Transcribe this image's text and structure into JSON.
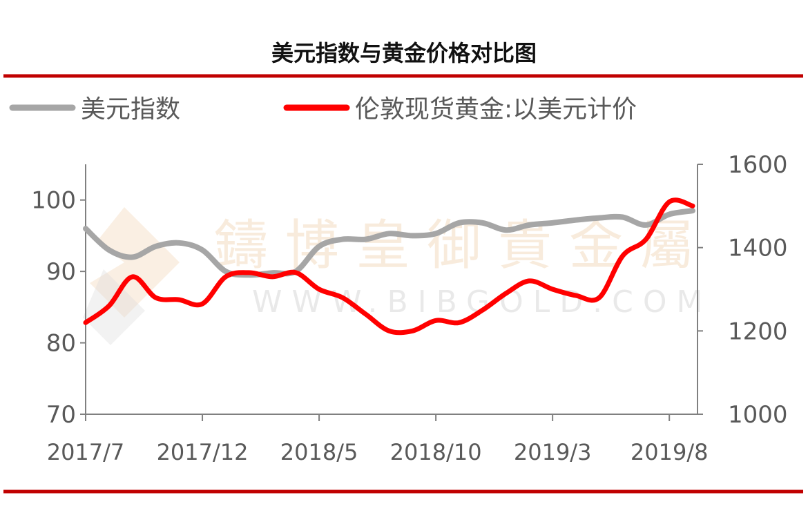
{
  "chart_data": {
    "type": "line",
    "title": "美元指数与黄金价格对比图",
    "x": [
      "2017/7",
      "2017/8",
      "2017/9",
      "2017/10",
      "2017/11",
      "2017/12",
      "2018/1",
      "2018/2",
      "2018/3",
      "2018/4",
      "2018/5",
      "2018/6",
      "2018/7",
      "2018/8",
      "2018/9",
      "2018/10",
      "2018/11",
      "2018/12",
      "2019/1",
      "2019/2",
      "2019/3",
      "2019/4",
      "2019/5",
      "2019/6",
      "2019/7",
      "2019/8",
      "2019/9"
    ],
    "x_tick_labels": [
      "2017/7",
      "2017/12",
      "2018/5",
      "2018/10",
      "2019/3",
      "2019/8"
    ],
    "left_axis": {
      "ylim": [
        70,
        105
      ],
      "ticks": [
        "70",
        "80",
        "90",
        "100"
      ]
    },
    "right_axis": {
      "ylim": [
        1000,
        1600
      ],
      "ticks": [
        "1000",
        "1200",
        "1400",
        "1600"
      ]
    },
    "legend_position": "top",
    "grid": false,
    "series": [
      {
        "name": "美元指数",
        "axis": "left",
        "color": "#a6a6a6",
        "values": [
          96,
          93,
          92,
          93.5,
          94,
          93,
          90,
          89.5,
          89.8,
          90,
          93.5,
          94.5,
          94.5,
          95.3,
          95,
          95.3,
          96.8,
          96.8,
          95.8,
          96.5,
          96.8,
          97.2,
          97.5,
          97.6,
          96.5,
          98,
          98.5
        ]
      },
      {
        "name": "伦敦现货黄金:以美元计价",
        "axis": "right",
        "color": "#ff0000",
        "values": [
          1220,
          1260,
          1330,
          1280,
          1275,
          1265,
          1330,
          1340,
          1330,
          1340,
          1300,
          1280,
          1240,
          1200,
          1200,
          1225,
          1220,
          1250,
          1290,
          1320,
          1300,
          1285,
          1280,
          1380,
          1420,
          1510,
          1500
        ]
      }
    ]
  },
  "colors": {
    "rule": "#c00000",
    "axis": "#808080"
  },
  "watermark": {
    "cn": "鑄 博 皇 御 貴 金 屬",
    "en": "WWW.BIBGOLD.COM"
  }
}
